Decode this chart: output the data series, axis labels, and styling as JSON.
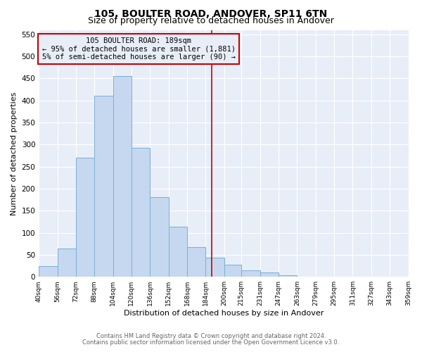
{
  "title": "105, BOULTER ROAD, ANDOVER, SP11 6TN",
  "subtitle": "Size of property relative to detached houses in Andover",
  "xlabel": "Distribution of detached houses by size in Andover",
  "ylabel": "Number of detached properties",
  "bar_edges": [
    40,
    56,
    72,
    88,
    104,
    120,
    136,
    152,
    168,
    184,
    200,
    215,
    231,
    247,
    263,
    279,
    295,
    311,
    327,
    343,
    359
  ],
  "bar_heights": [
    25,
    65,
    270,
    410,
    455,
    293,
    180,
    113,
    67,
    43,
    27,
    15,
    10,
    4,
    1,
    1,
    0,
    1,
    0,
    1
  ],
  "bar_color": "#c5d8f0",
  "bar_edge_color": "#7bafd4",
  "vline_x": 189,
  "vline_color": "#cc0000",
  "annotation_line1": "105 BOULTER ROAD: 189sqm",
  "annotation_line2": "← 95% of detached houses are smaller (1,881)",
  "annotation_line3": "5% of semi-detached houses are larger (90) →",
  "box_edge_color": "#cc0000",
  "ylim": [
    0,
    560
  ],
  "yticks": [
    0,
    50,
    100,
    150,
    200,
    250,
    300,
    350,
    400,
    450,
    500,
    550
  ],
  "xtick_labels": [
    "40sqm",
    "56sqm",
    "72sqm",
    "88sqm",
    "104sqm",
    "120sqm",
    "136sqm",
    "152sqm",
    "168sqm",
    "184sqm",
    "200sqm",
    "215sqm",
    "231sqm",
    "247sqm",
    "263sqm",
    "279sqm",
    "295sqm",
    "311sqm",
    "327sqm",
    "343sqm",
    "359sqm"
  ],
  "footer_line1": "Contains HM Land Registry data © Crown copyright and database right 2024.",
  "footer_line2": "Contains public sector information licensed under the Open Government Licence v3.0.",
  "plot_bg_color": "#e8eef8",
  "fig_bg_color": "#ffffff",
  "grid_color": "#ffffff",
  "title_fontsize": 10,
  "subtitle_fontsize": 9
}
